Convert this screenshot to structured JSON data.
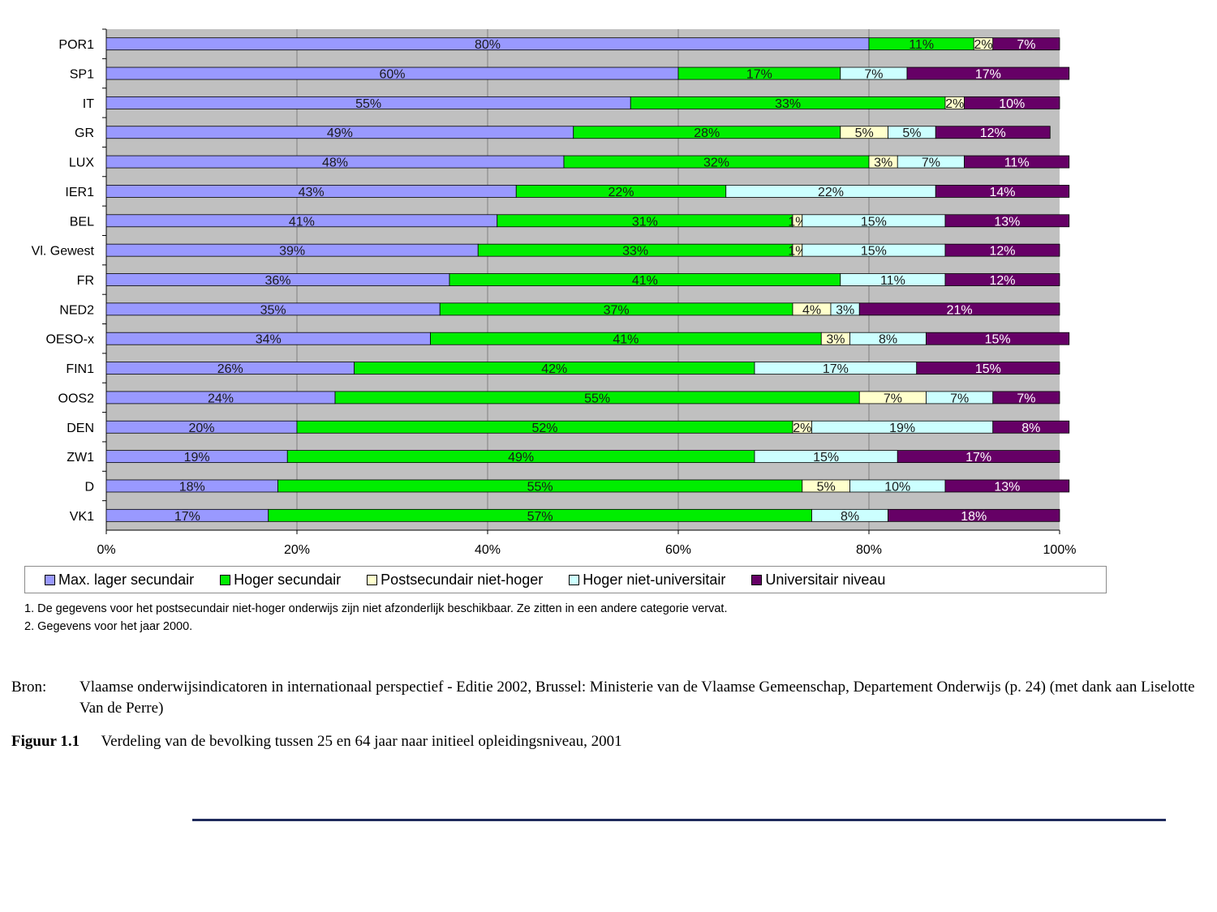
{
  "chart_data": {
    "type": "bar",
    "orientation": "horizontal",
    "stacked": "percent",
    "categories": [
      "POR1",
      "SP1",
      "IT",
      "GR",
      "LUX",
      "IER1",
      "BEL",
      "Vl. Gewest",
      "FR",
      "NED2",
      "OESO-x",
      "FIN1",
      "OOS2",
      "DEN",
      "ZW1",
      "D",
      "VK1"
    ],
    "series": [
      {
        "name": "Max. lager secundair",
        "color": "#9999ff",
        "label_color": "#1a1a1a",
        "values": [
          80,
          60,
          55,
          49,
          48,
          43,
          41,
          39,
          36,
          35,
          34,
          26,
          24,
          20,
          19,
          18,
          17
        ],
        "labels": [
          "80%",
          "60%",
          "55%",
          "49%",
          "48%",
          "43%",
          "41%",
          "39%",
          "36%",
          "35%",
          "34%",
          "26%",
          "24%",
          "20%",
          "19%",
          "18%",
          "17%"
        ]
      },
      {
        "name": "Hoger secundair",
        "color": "#00ee00",
        "label_color": "#1a1a1a",
        "values": [
          11,
          17,
          33,
          28,
          32,
          22,
          31,
          33,
          41,
          37,
          41,
          42,
          55,
          52,
          49,
          55,
          57
        ],
        "labels": [
          "11%",
          "17%",
          "33%",
          "28%",
          "32%",
          "22%",
          "31%",
          "33%",
          "41%",
          "37%",
          "41%",
          "42%",
          "55%",
          "52%",
          "49%",
          "55%",
          "57%"
        ]
      },
      {
        "name": "Postsecundair niet-hoger",
        "color": "#ffffcc",
        "label_color": "#1a1a1a",
        "values": [
          2,
          0,
          2,
          5,
          3,
          0,
          1,
          1,
          0,
          4,
          3,
          0,
          7,
          2,
          0,
          5,
          0
        ],
        "labels": [
          "2%",
          "",
          "2%",
          "5%",
          "3%",
          "",
          "1%",
          "1%",
          "",
          "4%",
          "3%",
          "",
          "7%",
          "2%",
          "",
          "5%",
          ""
        ]
      },
      {
        "name": "Hoger niet-universitair",
        "color": "#ccffff",
        "label_color": "#1a1a1a",
        "values": [
          0,
          7,
          0,
          5,
          7,
          22,
          15,
          15,
          11,
          3,
          8,
          17,
          7,
          19,
          15,
          10,
          8
        ],
        "labels": [
          "",
          "7%",
          "",
          "5%",
          "7%",
          "22%",
          "15%",
          "15%",
          "11%",
          "3%",
          "8%",
          "17%",
          "7%",
          "19%",
          "15%",
          "10%",
          "8%"
        ]
      },
      {
        "name": "Universitair niveau",
        "color": "#660066",
        "label_color": "#ffffff",
        "values": [
          7,
          17,
          10,
          12,
          11,
          14,
          13,
          12,
          12,
          21,
          15,
          15,
          7,
          8,
          17,
          13,
          18
        ],
        "labels": [
          "7%",
          "17%",
          "10%",
          "12%",
          "11%",
          "14%",
          "13%",
          "12%",
          "12%",
          "21%",
          "15%",
          "15%",
          "7%",
          "8%",
          "17%",
          "13%",
          "18%"
        ]
      }
    ],
    "xlim": [
      0,
      100
    ],
    "x_ticks": [
      "0%",
      "20%",
      "40%",
      "60%",
      "80%",
      "100%"
    ],
    "grid": true,
    "plot_background": "#c0c0c0",
    "legend_position": "bottom"
  },
  "notes": [
    "1. De gegevens voor het postsecundair niet-hoger onderwijs zijn niet afzonderlijk beschikbaar. Ze zitten in een andere categorie vervat.",
    "2. Gegevens voor het jaar 2000."
  ],
  "source": {
    "label": "Bron:",
    "text": "Vlaamse onderwijsindicatoren in internationaal perspectief - Editie 2002, Brussel: Ministerie van de Vlaamse Gemeenschap, Departement Onderwijs (p. 24) (met dank aan Liselotte Van de Perre)"
  },
  "caption": {
    "number": "Figuur 1.1",
    "text": "Verdeling van de bevolking tussen 25 en 64 jaar naar initieel opleidingsniveau, 2001"
  }
}
